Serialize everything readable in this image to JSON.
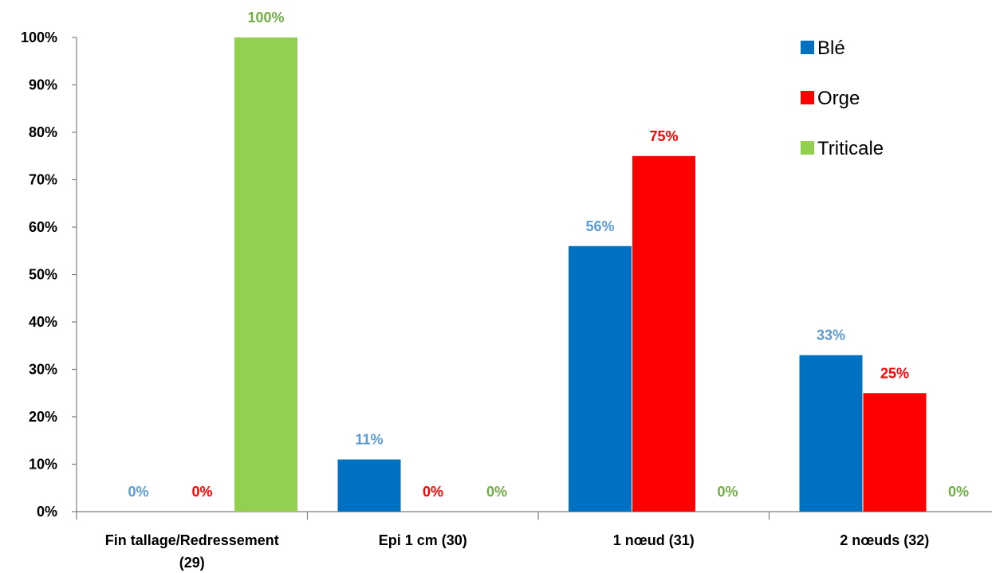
{
  "chart_data": {
    "type": "bar",
    "categories": [
      [
        "Fin tallage/Redressement",
        "(29)"
      ],
      [
        "Epi 1 cm (30)"
      ],
      [
        "1 nœud (31)"
      ],
      [
        "2 nœuds (32)"
      ]
    ],
    "series": [
      {
        "name": "Blé",
        "values": [
          0,
          11,
          56,
          33
        ],
        "color": "#0070C0",
        "label_color": "#5B9BD5"
      },
      {
        "name": "Orge",
        "values": [
          0,
          0,
          75,
          25
        ],
        "color": "#FF0000",
        "label_color": "#FF0000"
      },
      {
        "name": "Triticale",
        "values": [
          100,
          0,
          0,
          0
        ],
        "color": "#92D050",
        "label_color": "#70AD47"
      }
    ],
    "value_suffix": "%",
    "yticks": [
      "0%",
      "10%",
      "20%",
      "30%",
      "40%",
      "50%",
      "60%",
      "70%",
      "80%",
      "90%",
      "100%"
    ],
    "ylim": [
      0,
      100
    ],
    "xlabel": "",
    "ylabel": "",
    "title": "",
    "grid": false,
    "legend_position": "top-right"
  }
}
